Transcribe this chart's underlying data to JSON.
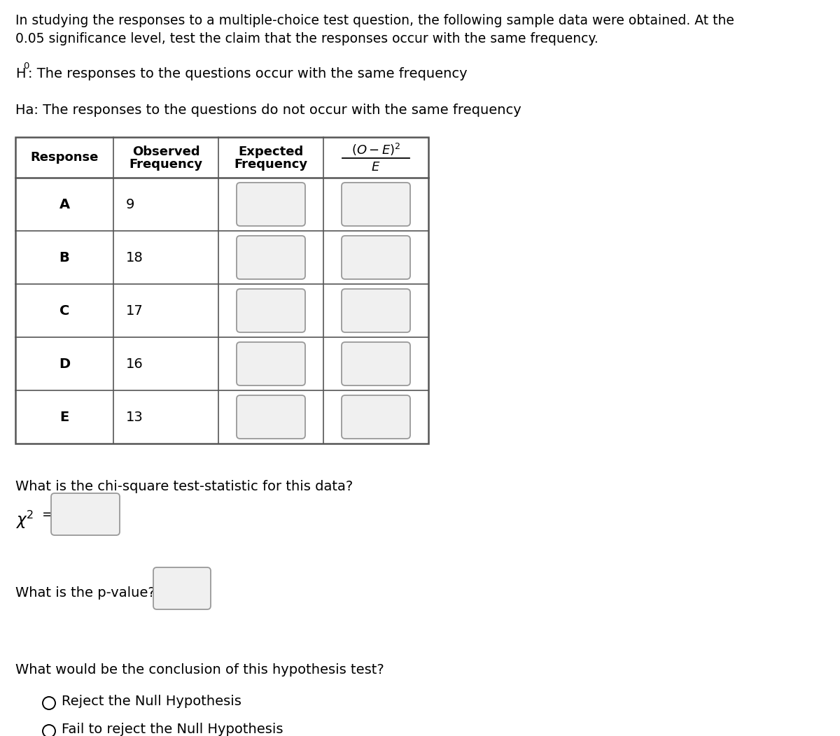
{
  "intro_line1": "In studying the responses to a multiple-choice test question, the following sample data were obtained. At the",
  "intro_line2": "0.05 significance level, test the claim that the responses occur with the same frequency.",
  "h0_prefix": "H",
  "h0_sub": "0",
  "h0_suffix": ": The responses to the questions occur with the same frequency",
  "ha_text": "Ha: The responses to the questions do not occur with the same frequency",
  "responses": [
    "A",
    "B",
    "C",
    "D",
    "E"
  ],
  "observed": [
    9,
    18,
    17,
    16,
    13
  ],
  "chi_square_label": "What is the chi-square test-statistic for this data?",
  "pvalue_label": "What is the p-value?",
  "conclusion_label": "What would be the conclusion of this hypothesis test?",
  "option1": "Reject the Null Hypothesis",
  "option2": "Fail to reject the Null Hypothesis",
  "bg_color": "#ffffff",
  "text_color": "#000000",
  "table_border_color": "#555555",
  "input_box_fill": "#f0f0f0",
  "input_box_border": "#999999",
  "font_size_body": 13.5,
  "font_size_table_header": 13,
  "font_size_table_data": 13
}
